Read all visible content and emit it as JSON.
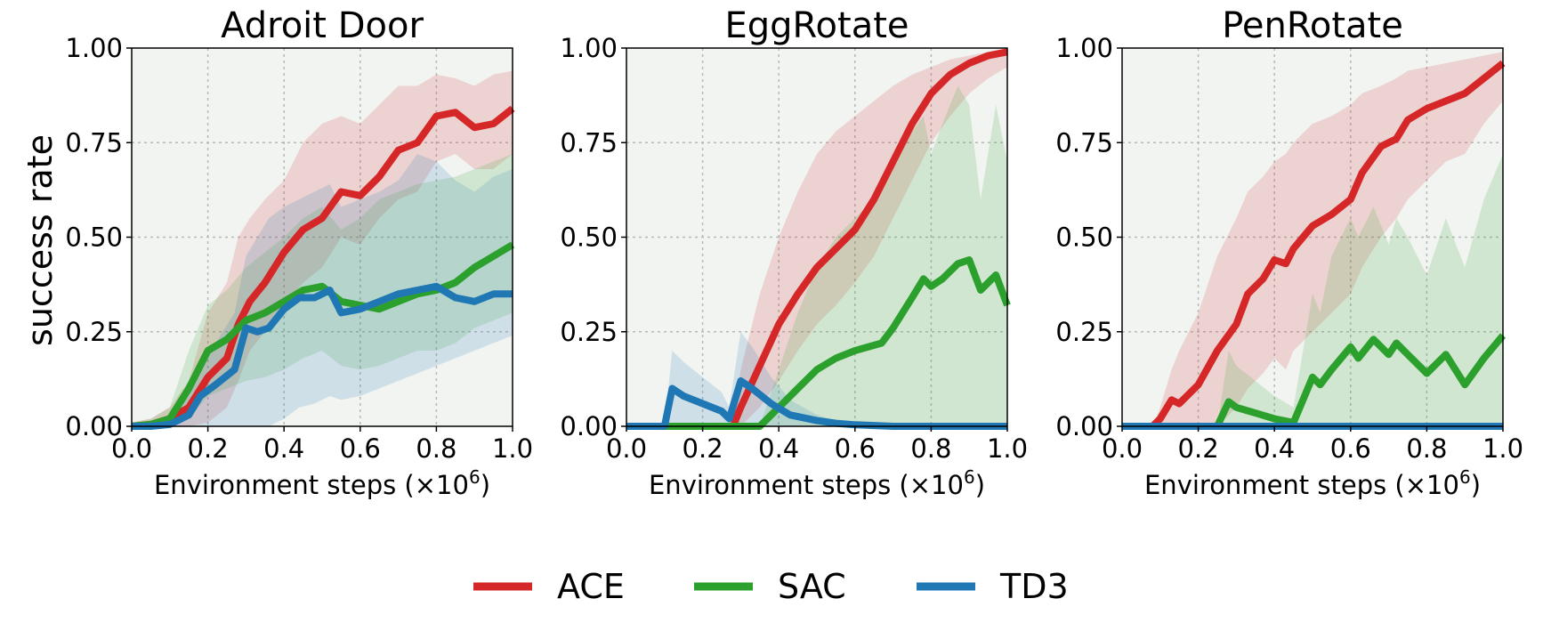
{
  "figure": {
    "ylabel": "success rate",
    "legend": [
      {
        "name": "ACE",
        "color": "#d62728"
      },
      {
        "name": "SAC",
        "color": "#2ca02c"
      },
      {
        "name": "TD3",
        "color": "#1f77b4"
      }
    ]
  },
  "chart_data": [
    {
      "type": "line",
      "title": "Adroit Door",
      "xlabel": "Environment steps (×10",
      "xlabel_exp": "6",
      "xlabel_close": ")",
      "ylabel": "success rate",
      "xlim": [
        0,
        1.0
      ],
      "ylim": [
        0,
        1.0
      ],
      "xticks": [
        "0.0",
        "0.2",
        "0.4",
        "0.6",
        "0.8",
        "1.0"
      ],
      "yticks": [
        "0.00",
        "0.25",
        "0.50",
        "0.75",
        "1.00"
      ],
      "grid": true,
      "series": [
        {
          "name": "ACE",
          "color": "#d62728",
          "x": [
            0,
            0.05,
            0.1,
            0.15,
            0.2,
            0.25,
            0.28,
            0.31,
            0.35,
            0.4,
            0.45,
            0.5,
            0.55,
            0.6,
            0.65,
            0.7,
            0.75,
            0.8,
            0.85,
            0.9,
            0.95,
            1.0
          ],
          "y": [
            0,
            0.005,
            0.02,
            0.05,
            0.13,
            0.18,
            0.27,
            0.33,
            0.38,
            0.46,
            0.52,
            0.55,
            0.62,
            0.61,
            0.66,
            0.73,
            0.75,
            0.82,
            0.83,
            0.79,
            0.8,
            0.84
          ],
          "lower": [
            0,
            0,
            0,
            0,
            0.01,
            0.05,
            0.12,
            0.2,
            0.25,
            0.32,
            0.38,
            0.42,
            0.5,
            0.48,
            0.55,
            0.6,
            0.62,
            0.7,
            0.72,
            0.68,
            0.68,
            0.72
          ],
          "upper": [
            0.01,
            0.02,
            0.05,
            0.12,
            0.3,
            0.38,
            0.5,
            0.55,
            0.6,
            0.65,
            0.75,
            0.8,
            0.82,
            0.8,
            0.85,
            0.9,
            0.9,
            0.93,
            0.92,
            0.9,
            0.93,
            0.94
          ]
        },
        {
          "name": "SAC",
          "color": "#2ca02c",
          "x": [
            0,
            0.05,
            0.1,
            0.15,
            0.2,
            0.25,
            0.3,
            0.35,
            0.4,
            0.45,
            0.5,
            0.55,
            0.6,
            0.65,
            0.7,
            0.75,
            0.8,
            0.85,
            0.9,
            0.95,
            1.0
          ],
          "y": [
            0,
            0.005,
            0.02,
            0.1,
            0.2,
            0.23,
            0.28,
            0.3,
            0.33,
            0.36,
            0.37,
            0.33,
            0.32,
            0.31,
            0.33,
            0.35,
            0.36,
            0.38,
            0.42,
            0.45,
            0.48
          ],
          "lower": [
            0,
            0,
            0,
            0.02,
            0.08,
            0.1,
            0.12,
            0.13,
            0.15,
            0.18,
            0.2,
            0.16,
            0.15,
            0.16,
            0.18,
            0.2,
            0.2,
            0.22,
            0.26,
            0.28,
            0.3
          ],
          "upper": [
            0.01,
            0.02,
            0.05,
            0.2,
            0.32,
            0.36,
            0.42,
            0.46,
            0.5,
            0.55,
            0.58,
            0.52,
            0.55,
            0.6,
            0.62,
            0.64,
            0.65,
            0.66,
            0.68,
            0.7,
            0.72
          ]
        },
        {
          "name": "TD3",
          "color": "#1f77b4",
          "x": [
            0,
            0.05,
            0.1,
            0.15,
            0.18,
            0.22,
            0.27,
            0.3,
            0.33,
            0.36,
            0.4,
            0.44,
            0.48,
            0.52,
            0.55,
            0.6,
            0.65,
            0.7,
            0.75,
            0.8,
            0.85,
            0.9,
            0.95,
            1.0
          ],
          "y": [
            0,
            0,
            0.005,
            0.03,
            0.08,
            0.11,
            0.15,
            0.26,
            0.25,
            0.26,
            0.31,
            0.34,
            0.34,
            0.36,
            0.3,
            0.31,
            0.33,
            0.35,
            0.36,
            0.37,
            0.34,
            0.33,
            0.35,
            0.35
          ],
          "lower": [
            0,
            0,
            0,
            0,
            0,
            0,
            0,
            0,
            0,
            0,
            0.02,
            0.05,
            0.06,
            0.08,
            0.07,
            0.08,
            0.1,
            0.12,
            0.14,
            0.16,
            0.18,
            0.2,
            0.22,
            0.24
          ],
          "upper": [
            0,
            0,
            0.02,
            0.08,
            0.15,
            0.22,
            0.3,
            0.45,
            0.5,
            0.55,
            0.58,
            0.6,
            0.62,
            0.64,
            0.58,
            0.6,
            0.62,
            0.65,
            0.72,
            0.7,
            0.65,
            0.62,
            0.66,
            0.68
          ]
        }
      ]
    },
    {
      "type": "line",
      "title": "EggRotate",
      "xlabel": "Environment steps (×10",
      "xlabel_exp": "6",
      "xlabel_close": ")",
      "xlim": [
        0,
        1.0
      ],
      "ylim": [
        0,
        1.0
      ],
      "xticks": [
        "0.0",
        "0.2",
        "0.4",
        "0.6",
        "0.8",
        "1.0"
      ],
      "yticks": [
        "0.00",
        "0.25",
        "0.50",
        "0.75",
        "1.00"
      ],
      "grid": true,
      "series": [
        {
          "name": "ACE",
          "color": "#d62728",
          "x": [
            0,
            0.28,
            0.3,
            0.35,
            0.4,
            0.45,
            0.5,
            0.55,
            0.6,
            0.65,
            0.7,
            0.75,
            0.8,
            0.85,
            0.9,
            0.95,
            1.0
          ],
          "y": [
            0,
            0,
            0.05,
            0.16,
            0.27,
            0.35,
            0.42,
            0.47,
            0.52,
            0.6,
            0.7,
            0.8,
            0.88,
            0.93,
            0.96,
            0.98,
            0.99
          ],
          "lower": [
            0,
            0,
            0,
            0.05,
            0.12,
            0.2,
            0.27,
            0.32,
            0.38,
            0.45,
            0.55,
            0.65,
            0.75,
            0.82,
            0.88,
            0.92,
            0.95
          ],
          "upper": [
            0,
            0,
            0.15,
            0.35,
            0.5,
            0.62,
            0.72,
            0.78,
            0.82,
            0.86,
            0.9,
            0.93,
            0.95,
            0.97,
            0.98,
            0.99,
            1.0
          ]
        },
        {
          "name": "SAC",
          "color": "#2ca02c",
          "x": [
            0,
            0.35,
            0.4,
            0.45,
            0.5,
            0.55,
            0.6,
            0.67,
            0.7,
            0.75,
            0.78,
            0.8,
            0.83,
            0.87,
            0.9,
            0.93,
            0.97,
            1.0
          ],
          "y": [
            0,
            0,
            0.05,
            0.1,
            0.15,
            0.18,
            0.2,
            0.22,
            0.26,
            0.34,
            0.39,
            0.37,
            0.39,
            0.43,
            0.44,
            0.36,
            0.4,
            0.32
          ],
          "lower": [
            0,
            0,
            0,
            0,
            0,
            0,
            0,
            0,
            0,
            0,
            0,
            0,
            0,
            0,
            0,
            0,
            0,
            0
          ],
          "upper": [
            0,
            0,
            0.15,
            0.3,
            0.42,
            0.5,
            0.55,
            0.62,
            0.7,
            0.78,
            0.82,
            0.72,
            0.8,
            0.9,
            0.85,
            0.6,
            0.85,
            0.7
          ]
        },
        {
          "name": "TD3",
          "color": "#1f77b4",
          "x": [
            0,
            0.1,
            0.12,
            0.15,
            0.2,
            0.25,
            0.27,
            0.3,
            0.33,
            0.38,
            0.43,
            0.5,
            0.55,
            0.6,
            0.65,
            0.7,
            0.8,
            0.9,
            1.0
          ],
          "y": [
            0,
            0,
            0.1,
            0.08,
            0.06,
            0.04,
            0.02,
            0.12,
            0.1,
            0.06,
            0.03,
            0.015,
            0.008,
            0.004,
            0.002,
            0,
            0,
            0,
            0
          ],
          "lower": [
            0,
            0,
            0,
            0,
            0,
            0,
            0,
            0,
            0,
            0,
            0,
            0,
            0,
            0,
            0,
            0,
            0,
            0,
            0
          ],
          "upper": [
            0,
            0,
            0.2,
            0.17,
            0.13,
            0.09,
            0.05,
            0.25,
            0.21,
            0.13,
            0.07,
            0.03,
            0.015,
            0.008,
            0.004,
            0,
            0,
            0,
            0
          ]
        }
      ]
    },
    {
      "type": "line",
      "title": "PenRotate",
      "xlabel": "Environment steps (×10",
      "xlabel_exp": "6",
      "xlabel_close": ")",
      "xlim": [
        0,
        1.0
      ],
      "ylim": [
        0,
        1.0
      ],
      "xticks": [
        "0.0",
        "0.2",
        "0.4",
        "0.6",
        "0.8",
        "1.0"
      ],
      "yticks": [
        "0.00",
        "0.25",
        "0.50",
        "0.75",
        "1.00"
      ],
      "grid": true,
      "series": [
        {
          "name": "ACE",
          "color": "#d62728",
          "x": [
            0,
            0.08,
            0.1,
            0.13,
            0.15,
            0.2,
            0.25,
            0.3,
            0.33,
            0.37,
            0.4,
            0.43,
            0.45,
            0.5,
            0.55,
            0.6,
            0.63,
            0.68,
            0.72,
            0.75,
            0.8,
            0.85,
            0.9,
            0.95,
            1.0
          ],
          "y": [
            0,
            0,
            0.02,
            0.07,
            0.06,
            0.11,
            0.2,
            0.27,
            0.35,
            0.39,
            0.44,
            0.43,
            0.47,
            0.53,
            0.56,
            0.6,
            0.67,
            0.74,
            0.76,
            0.81,
            0.84,
            0.86,
            0.88,
            0.92,
            0.96
          ],
          "lower": [
            0,
            0,
            0,
            0,
            0,
            0,
            0,
            0.05,
            0.1,
            0.14,
            0.18,
            0.15,
            0.2,
            0.25,
            0.3,
            0.35,
            0.42,
            0.5,
            0.55,
            0.6,
            0.65,
            0.7,
            0.72,
            0.8,
            0.86
          ],
          "upper": [
            0,
            0,
            0.05,
            0.15,
            0.2,
            0.3,
            0.45,
            0.55,
            0.62,
            0.66,
            0.7,
            0.72,
            0.75,
            0.8,
            0.82,
            0.85,
            0.88,
            0.9,
            0.92,
            0.94,
            0.95,
            0.96,
            0.97,
            0.98,
            0.99
          ]
        },
        {
          "name": "SAC",
          "color": "#2ca02c",
          "x": [
            0,
            0.25,
            0.28,
            0.3,
            0.35,
            0.4,
            0.45,
            0.5,
            0.52,
            0.55,
            0.6,
            0.62,
            0.66,
            0.7,
            0.72,
            0.75,
            0.8,
            0.85,
            0.9,
            0.95,
            1.0
          ],
          "y": [
            0,
            0,
            0.065,
            0.05,
            0.035,
            0.02,
            0.01,
            0.13,
            0.11,
            0.15,
            0.21,
            0.18,
            0.23,
            0.19,
            0.22,
            0.19,
            0.14,
            0.19,
            0.11,
            0.18,
            0.24
          ],
          "lower": [
            0,
            0,
            0,
            0,
            0,
            0,
            0,
            0,
            0,
            0,
            0,
            0,
            0,
            0,
            0,
            0,
            0,
            0,
            0,
            0,
            0
          ],
          "upper": [
            0,
            0,
            0.2,
            0.16,
            0.12,
            0.08,
            0.05,
            0.35,
            0.3,
            0.45,
            0.55,
            0.5,
            0.58,
            0.48,
            0.55,
            0.5,
            0.4,
            0.55,
            0.42,
            0.6,
            0.72
          ]
        },
        {
          "name": "TD3",
          "color": "#1f77b4",
          "x": [
            0,
            1.0
          ],
          "y": [
            0,
            0
          ],
          "lower": [
            0,
            0
          ],
          "upper": [
            0,
            0
          ]
        }
      ]
    }
  ]
}
